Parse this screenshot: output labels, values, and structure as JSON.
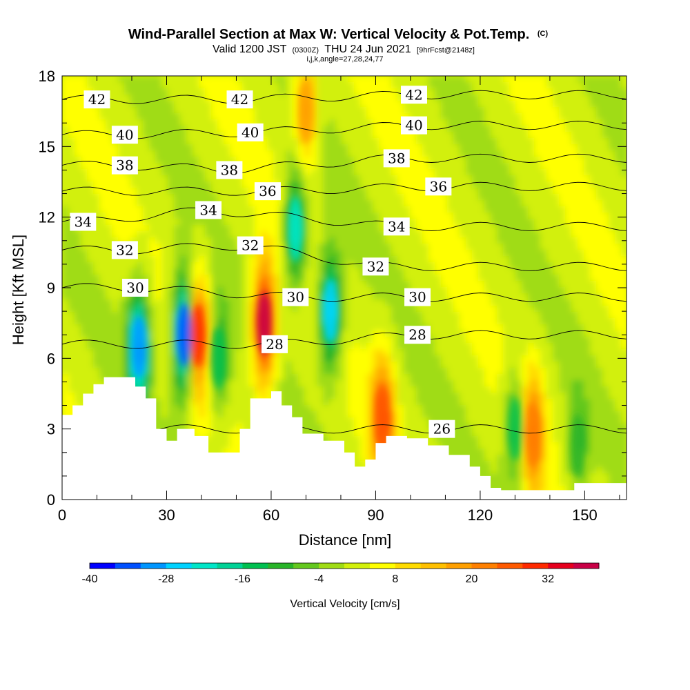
{
  "title": {
    "main": "Wind-Parallel Section at Max W: Vertical Velocity & Pot.Temp.",
    "copyright": "(C)",
    "valid_prefix": "Valid 1200 JST",
    "valid_utc": "(0300Z)",
    "valid_date": "THU 24 Jun 2021",
    "forecast": "[9hrFcst@2148z]",
    "indices": "i,j,k,angle=27,28,24,77"
  },
  "chart_data": {
    "type": "heatmap",
    "xlabel": "Distance [nm]",
    "ylabel": "Height [Kft MSL]",
    "xlim": [
      0,
      162
    ],
    "ylim": [
      0,
      18
    ],
    "x_ticks": [
      0,
      30,
      60,
      90,
      120,
      150
    ],
    "y_ticks": [
      0,
      3,
      6,
      9,
      12,
      15,
      18
    ],
    "colorbar": {
      "title": "Vertical Velocity [cm/s]",
      "ticks": [
        -40,
        -28,
        -16,
        -4,
        8,
        20,
        32
      ],
      "min": -40,
      "max": 40,
      "step": 4,
      "colors": [
        "#0000ff",
        "#0050ff",
        "#0096ff",
        "#00d2ff",
        "#00e6c8",
        "#00d296",
        "#00c050",
        "#28b428",
        "#64c81e",
        "#a0dc14",
        "#d2f00a",
        "#ffff00",
        "#ffdc00",
        "#ffc000",
        "#ffa000",
        "#ff8000",
        "#ff5a00",
        "#ff2a00",
        "#e6001e",
        "#c80046",
        "#a0006e",
        "#640096"
      ]
    },
    "vertical_velocity_features": [
      {
        "x": 22,
        "y": 6.5,
        "value": -30
      },
      {
        "x": 35,
        "y": 7.0,
        "value": -36
      },
      {
        "x": 39,
        "y": 7.0,
        "value": 28
      },
      {
        "x": 45,
        "y": 6.0,
        "value": -14
      },
      {
        "x": 58,
        "y": 7.5,
        "value": 36
      },
      {
        "x": 67,
        "y": 11.5,
        "value": -22
      },
      {
        "x": 70,
        "y": 16.5,
        "value": 18
      },
      {
        "x": 77,
        "y": 8.0,
        "value": -26
      },
      {
        "x": 92,
        "y": 3.5,
        "value": 26
      },
      {
        "x": 130,
        "y": 3.0,
        "value": -14
      },
      {
        "x": 135,
        "y": 2.8,
        "value": 22
      },
      {
        "x": 148,
        "y": 2.3,
        "value": -10
      }
    ],
    "potential_temperature_labels": [
      {
        "x": 10,
        "y": 17.0,
        "value": "42"
      },
      {
        "x": 51,
        "y": 17.0,
        "value": "42"
      },
      {
        "x": 101,
        "y": 17.2,
        "value": "42"
      },
      {
        "x": 18,
        "y": 15.5,
        "value": "40"
      },
      {
        "x": 54,
        "y": 15.6,
        "value": "40"
      },
      {
        "x": 101,
        "y": 15.9,
        "value": "40"
      },
      {
        "x": 18,
        "y": 14.2,
        "value": "38"
      },
      {
        "x": 48,
        "y": 14.0,
        "value": "38"
      },
      {
        "x": 96,
        "y": 14.5,
        "value": "38"
      },
      {
        "x": 6,
        "y": 11.8,
        "value": "34"
      },
      {
        "x": 42,
        "y": 12.3,
        "value": "34"
      },
      {
        "x": 96,
        "y": 11.6,
        "value": "34"
      },
      {
        "x": 59,
        "y": 13.1,
        "value": "36"
      },
      {
        "x": 108,
        "y": 13.3,
        "value": "36"
      },
      {
        "x": 18,
        "y": 10.6,
        "value": "32"
      },
      {
        "x": 54,
        "y": 10.8,
        "value": "32"
      },
      {
        "x": 90,
        "y": 9.9,
        "value": "32"
      },
      {
        "x": 21,
        "y": 9.0,
        "value": "30"
      },
      {
        "x": 67,
        "y": 8.6,
        "value": "30"
      },
      {
        "x": 102,
        "y": 8.6,
        "value": "30"
      },
      {
        "x": 61,
        "y": 6.6,
        "value": "28"
      },
      {
        "x": 102,
        "y": 7.0,
        "value": "28"
      },
      {
        "x": 109,
        "y": 3.0,
        "value": "26"
      }
    ],
    "terrain_height": [
      [
        0,
        3.6
      ],
      [
        3,
        4.0
      ],
      [
        6,
        4.5
      ],
      [
        9,
        4.9
      ],
      [
        12,
        5.2
      ],
      [
        18,
        5.2
      ],
      [
        21,
        4.8
      ],
      [
        24,
        4.3
      ],
      [
        27,
        3.0
      ],
      [
        30,
        2.5
      ],
      [
        33,
        3.0
      ],
      [
        38,
        2.7
      ],
      [
        42,
        2.0
      ],
      [
        48,
        2.0
      ],
      [
        51,
        3.0
      ],
      [
        54,
        4.3
      ],
      [
        60,
        4.6
      ],
      [
        63,
        4.0
      ],
      [
        66,
        3.5
      ],
      [
        69,
        2.8
      ],
      [
        75,
        2.5
      ],
      [
        81,
        2.0
      ],
      [
        84,
        1.4
      ],
      [
        87,
        1.7
      ],
      [
        90,
        2.4
      ],
      [
        93,
        2.7
      ],
      [
        99,
        2.6
      ],
      [
        105,
        2.3
      ],
      [
        111,
        1.9
      ],
      [
        117,
        1.4
      ],
      [
        120,
        1.0
      ],
      [
        123,
        0.5
      ],
      [
        126,
        0.4
      ],
      [
        144,
        0.4
      ],
      [
        147,
        0.7
      ],
      [
        162,
        0.7
      ]
    ]
  }
}
